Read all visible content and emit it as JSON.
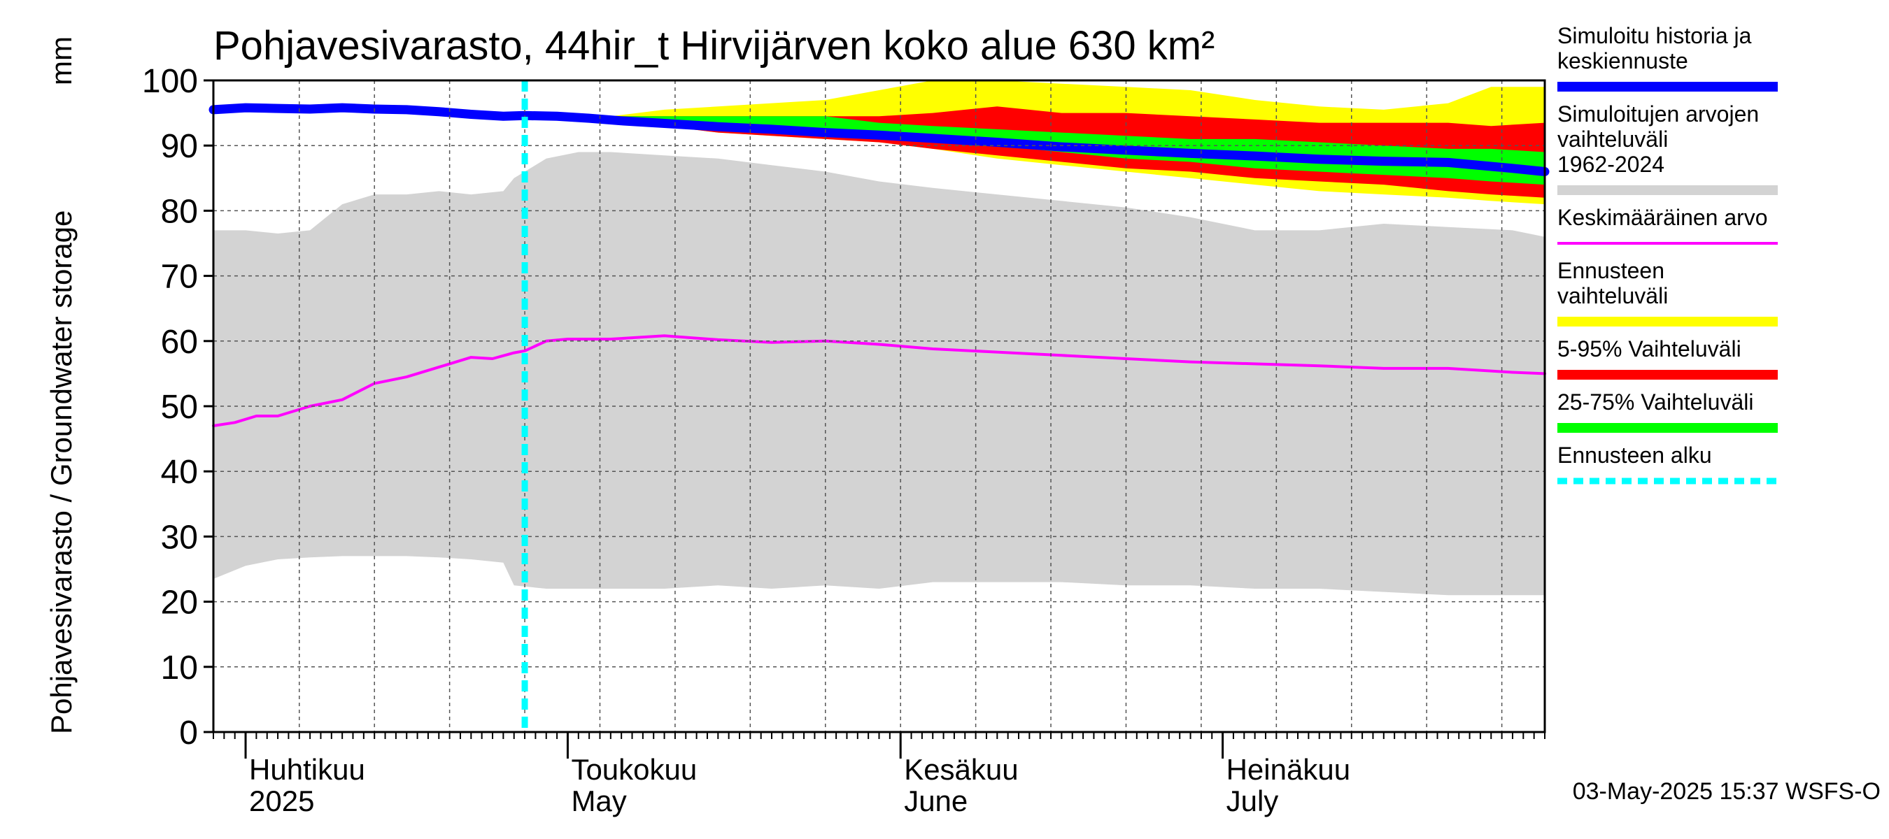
{
  "chart_data": {
    "type": "area",
    "title": "Pohjavesivarasto, 44hir_t Hirvijärven koko alue 630 km²",
    "ylabel": "Pohjavesivarasto / Groundwater storage",
    "yunit": "mm",
    "ylim": [
      0,
      100
    ],
    "yticks": [
      0,
      10,
      20,
      30,
      40,
      50,
      60,
      70,
      80,
      90,
      100
    ],
    "xlim": [
      "2025-03-29",
      "2025-07-31"
    ],
    "grid": true,
    "legend_position": "right",
    "month_labels": [
      {
        "date": "2025-04-01",
        "line1": "Huhtikuu",
        "line2": "2025"
      },
      {
        "date": "2025-05-01",
        "line1": "Toukokuu",
        "line2": "May"
      },
      {
        "date": "2025-06-01",
        "line1": "Kesäkuu",
        "line2": "June"
      },
      {
        "date": "2025-07-01",
        "line1": "Heinäkuu",
        "line2": "July"
      }
    ],
    "forecast_start": "2025-04-27",
    "timestamp": "03-May-2025 15:37 WSFS-O",
    "legend": [
      {
        "label": "Simuloitu historia ja keskiennuste",
        "color": "#0000ff",
        "style": "thick"
      },
      {
        "label": "Simuloitujen arvojen vaihteluväli 1962-2024",
        "color": "#d3d3d3",
        "style": "thick"
      },
      {
        "label": "Keskimääräinen arvo",
        "color": "#ff00ff",
        "style": "thin"
      },
      {
        "label": "Ennusteen vaihteluväli",
        "color": "#ffff00",
        "style": "thick"
      },
      {
        "label": "5-95% Vaihteluväli",
        "color": "#ff0000",
        "style": "thick"
      },
      {
        "label": "25-75% Vaihteluväli",
        "color": "#00ff00",
        "style": "thick"
      },
      {
        "label": "Ennusteen alku",
        "color": "#00ffff",
        "style": "dashed"
      }
    ],
    "series": [
      {
        "name": "Simuloitujen arvojen vaihteluväli 1962-2024",
        "kind": "band",
        "color": "#d3d3d3",
        "x": [
          "2025-03-29",
          "2025-04-01",
          "2025-04-04",
          "2025-04-07",
          "2025-04-10",
          "2025-04-13",
          "2025-04-16",
          "2025-04-19",
          "2025-04-22",
          "2025-04-25",
          "2025-04-26",
          "2025-04-29",
          "2025-05-02",
          "2025-05-05",
          "2025-05-10",
          "2025-05-15",
          "2025-05-20",
          "2025-05-25",
          "2025-05-30",
          "2025-06-04",
          "2025-06-10",
          "2025-06-16",
          "2025-06-22",
          "2025-06-28",
          "2025-07-04",
          "2025-07-10",
          "2025-07-16",
          "2025-07-22",
          "2025-07-28",
          "2025-07-31"
        ],
        "low": [
          23.5,
          25.5,
          26.5,
          26.8,
          27,
          27,
          27,
          26.8,
          26.5,
          26,
          22.5,
          22,
          22,
          22,
          22,
          22.5,
          22,
          22.5,
          22,
          23,
          23,
          23,
          22.5,
          22.5,
          22,
          22,
          21.5,
          21,
          21,
          21
        ],
        "high": [
          77,
          77,
          76.5,
          77,
          81,
          82.5,
          82.5,
          83,
          82.5,
          83,
          85,
          88,
          89,
          89,
          88.5,
          88,
          87,
          86,
          84.5,
          83.5,
          82.5,
          81.5,
          80.5,
          79,
          77,
          77,
          78,
          77.5,
          77,
          76
        ]
      },
      {
        "name": "Ennusteen vaihteluväli",
        "kind": "band",
        "color": "#ffff00",
        "x": [
          "2025-04-27",
          "2025-05-05",
          "2025-05-10",
          "2025-05-15",
          "2025-05-20",
          "2025-05-25",
          "2025-05-30",
          "2025-06-04",
          "2025-06-10",
          "2025-06-16",
          "2025-06-22",
          "2025-06-28",
          "2025-07-04",
          "2025-07-10",
          "2025-07-16",
          "2025-07-22",
          "2025-07-26",
          "2025-07-31"
        ],
        "low": [
          94.5,
          94,
          93,
          92,
          91.5,
          91,
          90.5,
          89.5,
          88,
          87,
          86,
          85,
          84,
          83,
          82.5,
          82,
          81.5,
          81
        ],
        "high": [
          94.5,
          94.5,
          95.5,
          96,
          96.5,
          97,
          98.5,
          100,
          100,
          99.5,
          99,
          98.5,
          97,
          96,
          95.5,
          96.5,
          99,
          99
        ]
      },
      {
        "name": "5-95% Vaihteluväli",
        "kind": "band",
        "color": "#ff0000",
        "x": [
          "2025-04-27",
          "2025-05-05",
          "2025-05-10",
          "2025-05-15",
          "2025-05-20",
          "2025-05-25",
          "2025-05-30",
          "2025-06-04",
          "2025-06-10",
          "2025-06-16",
          "2025-06-22",
          "2025-06-28",
          "2025-07-04",
          "2025-07-10",
          "2025-07-16",
          "2025-07-22",
          "2025-07-26",
          "2025-07-31"
        ],
        "low": [
          94.5,
          94,
          93,
          92,
          91.5,
          91,
          90.5,
          89.5,
          88.5,
          87.5,
          86.5,
          86,
          85,
          84.5,
          84,
          83,
          82.5,
          82
        ],
        "high": [
          94.5,
          94.5,
          94.5,
          94.5,
          94.5,
          94.5,
          94.5,
          95,
          96,
          95,
          95,
          94.5,
          94,
          93.5,
          93.5,
          93.5,
          93,
          93.5
        ]
      },
      {
        "name": "25-75% Vaihteluväli",
        "kind": "band",
        "color": "#00ff00",
        "x": [
          "2025-04-27",
          "2025-05-05",
          "2025-05-10",
          "2025-05-15",
          "2025-05-20",
          "2025-05-25",
          "2025-05-30",
          "2025-06-04",
          "2025-06-10",
          "2025-06-16",
          "2025-06-22",
          "2025-06-28",
          "2025-07-04",
          "2025-07-10",
          "2025-07-16",
          "2025-07-22",
          "2025-07-26",
          "2025-07-31"
        ],
        "low": [
          94.5,
          94,
          93.5,
          93,
          92.5,
          92,
          91.5,
          91,
          90,
          89,
          88,
          87.5,
          86.5,
          86,
          85.5,
          85,
          84.5,
          84
        ],
        "high": [
          94.5,
          94.5,
          94.5,
          94.5,
          94.5,
          94.5,
          93.5,
          93,
          92.5,
          92,
          91.5,
          91,
          91,
          90.5,
          90,
          89.5,
          89.5,
          89
        ]
      },
      {
        "name": "Keskimääräinen arvo",
        "kind": "line",
        "color": "#ff00ff",
        "x": [
          "2025-03-29",
          "2025-03-31",
          "2025-04-02",
          "2025-04-04",
          "2025-04-07",
          "2025-04-10",
          "2025-04-13",
          "2025-04-16",
          "2025-04-19",
          "2025-04-22",
          "2025-04-24",
          "2025-04-26",
          "2025-04-27",
          "2025-04-29",
          "2025-05-01",
          "2025-05-05",
          "2025-05-10",
          "2025-05-15",
          "2025-05-20",
          "2025-05-25",
          "2025-05-30",
          "2025-06-04",
          "2025-06-10",
          "2025-06-16",
          "2025-06-22",
          "2025-06-28",
          "2025-07-04",
          "2025-07-10",
          "2025-07-16",
          "2025-07-22",
          "2025-07-28",
          "2025-07-31"
        ],
        "values": [
          47,
          47.5,
          48.5,
          48.5,
          50,
          51,
          53.5,
          54.5,
          56,
          57.5,
          57.3,
          58.2,
          58.5,
          60,
          60.3,
          60.3,
          60.8,
          60.2,
          59.8,
          60,
          59.5,
          58.8,
          58.3,
          57.8,
          57.3,
          56.8,
          56.5,
          56.2,
          55.8,
          55.8,
          55.2,
          55
        ]
      },
      {
        "name": "Simuloitu historia ja keskiennuste",
        "kind": "line",
        "color": "#0000ff",
        "x": [
          "2025-03-29",
          "2025-04-01",
          "2025-04-04",
          "2025-04-07",
          "2025-04-10",
          "2025-04-13",
          "2025-04-16",
          "2025-04-19",
          "2025-04-22",
          "2025-04-25",
          "2025-04-27",
          "2025-04-30",
          "2025-05-03",
          "2025-05-06",
          "2025-05-10",
          "2025-05-15",
          "2025-05-20",
          "2025-05-25",
          "2025-05-30",
          "2025-06-04",
          "2025-06-10",
          "2025-06-16",
          "2025-06-22",
          "2025-06-28",
          "2025-07-04",
          "2025-07-10",
          "2025-07-16",
          "2025-07-22",
          "2025-07-28",
          "2025-07-31"
        ],
        "values": [
          95.5,
          95.8,
          95.7,
          95.6,
          95.8,
          95.6,
          95.5,
          95.2,
          94.8,
          94.5,
          94.6,
          94.5,
          94.2,
          93.8,
          93.4,
          92.9,
          92.5,
          92,
          91.6,
          91.1,
          90.5,
          89.8,
          89.3,
          88.8,
          88.4,
          87.9,
          87.6,
          87.4,
          86.5,
          86
        ]
      }
    ]
  }
}
